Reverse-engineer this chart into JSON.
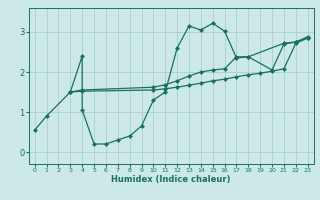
{
  "xlabel": "Humidex (Indice chaleur)",
  "bg_color": "#cce8e8",
  "line_color": "#1a7060",
  "grid_color": "#aacfcf",
  "xlim": [
    -0.5,
    23.5
  ],
  "ylim": [
    -0.3,
    3.6
  ],
  "yticks": [
    0,
    1,
    2,
    3
  ],
  "xticks": [
    0,
    1,
    2,
    3,
    4,
    5,
    6,
    7,
    8,
    9,
    10,
    11,
    12,
    13,
    14,
    15,
    16,
    17,
    18,
    19,
    20,
    21,
    22,
    23
  ],
  "line1_x": [
    0,
    1,
    3,
    4,
    4,
    5,
    6,
    7,
    8,
    9,
    10,
    11,
    12,
    13,
    14,
    15,
    16,
    17,
    18,
    20,
    21,
    22,
    23
  ],
  "line1_y": [
    0.55,
    0.9,
    1.5,
    2.4,
    1.05,
    0.2,
    0.2,
    0.3,
    0.4,
    0.65,
    1.3,
    1.5,
    2.6,
    3.15,
    3.05,
    3.22,
    3.02,
    2.35,
    2.38,
    2.05,
    2.7,
    2.75,
    2.88
  ],
  "line2_x": [
    3,
    4,
    10,
    11,
    12,
    13,
    14,
    15,
    16,
    17,
    18,
    21,
    22,
    23
  ],
  "line2_y": [
    1.5,
    1.55,
    1.62,
    1.68,
    1.78,
    1.9,
    2.0,
    2.05,
    2.08,
    2.38,
    2.38,
    2.72,
    2.75,
    2.85
  ],
  "line3_x": [
    3,
    4,
    10,
    11,
    12,
    13,
    14,
    15,
    16,
    17,
    18,
    19,
    20,
    21,
    22,
    23
  ],
  "line3_y": [
    1.5,
    1.52,
    1.55,
    1.58,
    1.62,
    1.67,
    1.72,
    1.78,
    1.82,
    1.88,
    1.93,
    1.97,
    2.02,
    2.08,
    2.72,
    2.85
  ]
}
